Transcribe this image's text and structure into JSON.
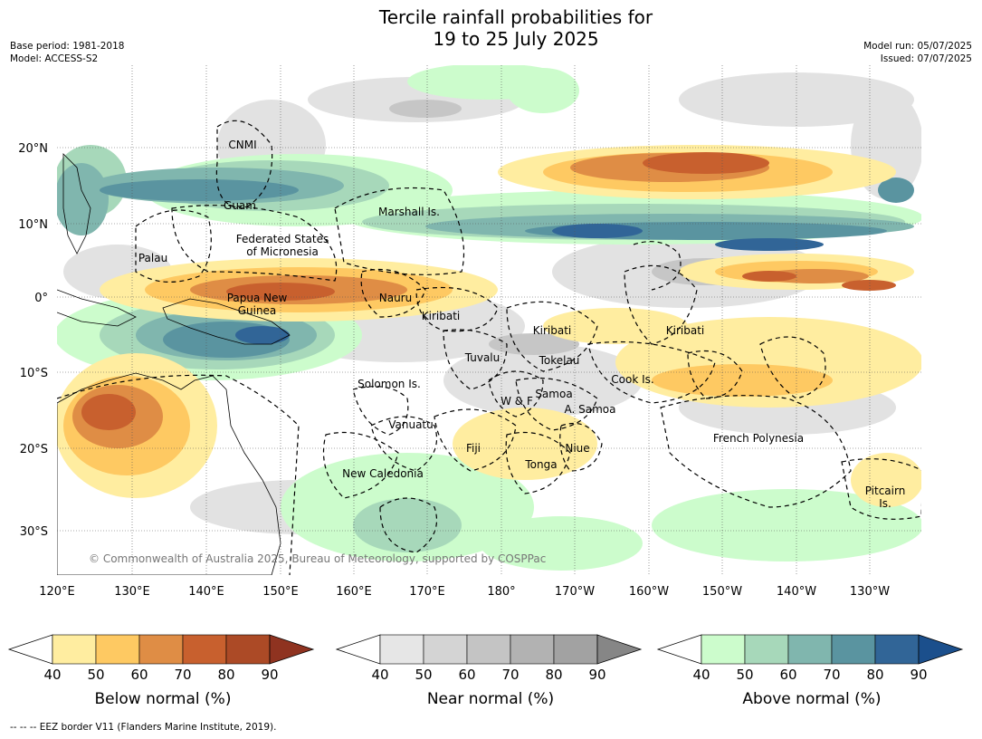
{
  "title_line1": "Tercile rainfall probabilities for",
  "title_line2": "19 to 25 July 2025",
  "base_period": "Base period: 1981-2018",
  "model": "Model: ACCESS-S2",
  "model_run": "Model run: 05/07/2025",
  "issued": "Issued: 07/07/2025",
  "copyright": "© Commonwealth of Australia 2025, Bureau of Meteorology, supported by COSPPac",
  "lon_labels": [
    "120°E",
    "130°E",
    "140°E",
    "150°E",
    "160°E",
    "170°E",
    "180°",
    "170°W",
    "160°W",
    "150°W",
    "140°W",
    "130°W"
  ],
  "lat_labels": [
    "20°N",
    "10°N",
    "0°",
    "10°S",
    "20°S",
    "30°S"
  ],
  "regions": [
    "CNMI",
    "Guam",
    "Marshall Is.",
    "Palau",
    "Federated States",
    "of Micronesia",
    "Papua New",
    "Guinea",
    "Nauru",
    "Kiribati",
    "Kiribati",
    "Kiribati",
    "Tuvalu",
    "Tokelau",
    "Cook Is.",
    "Solomon Is.",
    "W & F",
    "Samoa",
    "A. Samoa",
    "Vanuatu",
    "Fiji",
    "Niue",
    "Tonga",
    "French Polynesia",
    "New Caledonia",
    "Pitcairn",
    "Is."
  ],
  "colorbars": [
    {
      "label": "Below normal (%)",
      "ticks": [
        "40",
        "50",
        "60",
        "70",
        "80",
        "90"
      ],
      "colors": [
        "#ffeda0",
        "#fec962",
        "#df8d45",
        "#c8602e",
        "#ac4a26",
        "#8f3320"
      ]
    },
    {
      "label": "Near normal (%)",
      "ticks": [
        "40",
        "50",
        "60",
        "70",
        "80",
        "90"
      ],
      "colors": [
        "#e6e6e6",
        "#d4d4d4",
        "#c4c4c4",
        "#b2b2b2",
        "#a2a2a2",
        "#868686"
      ]
    },
    {
      "label": "Above normal (%)",
      "ticks": [
        "40",
        "50",
        "60",
        "70",
        "80",
        "90"
      ],
      "colors": [
        "#ccfccc",
        "#a7d8ba",
        "#80b6ae",
        "#5a94a0",
        "#316597",
        "#1b4f8c"
      ]
    }
  ],
  "footer": "--  --  -- EEZ border V11 (Flanders Marine Institute, 2019)."
}
